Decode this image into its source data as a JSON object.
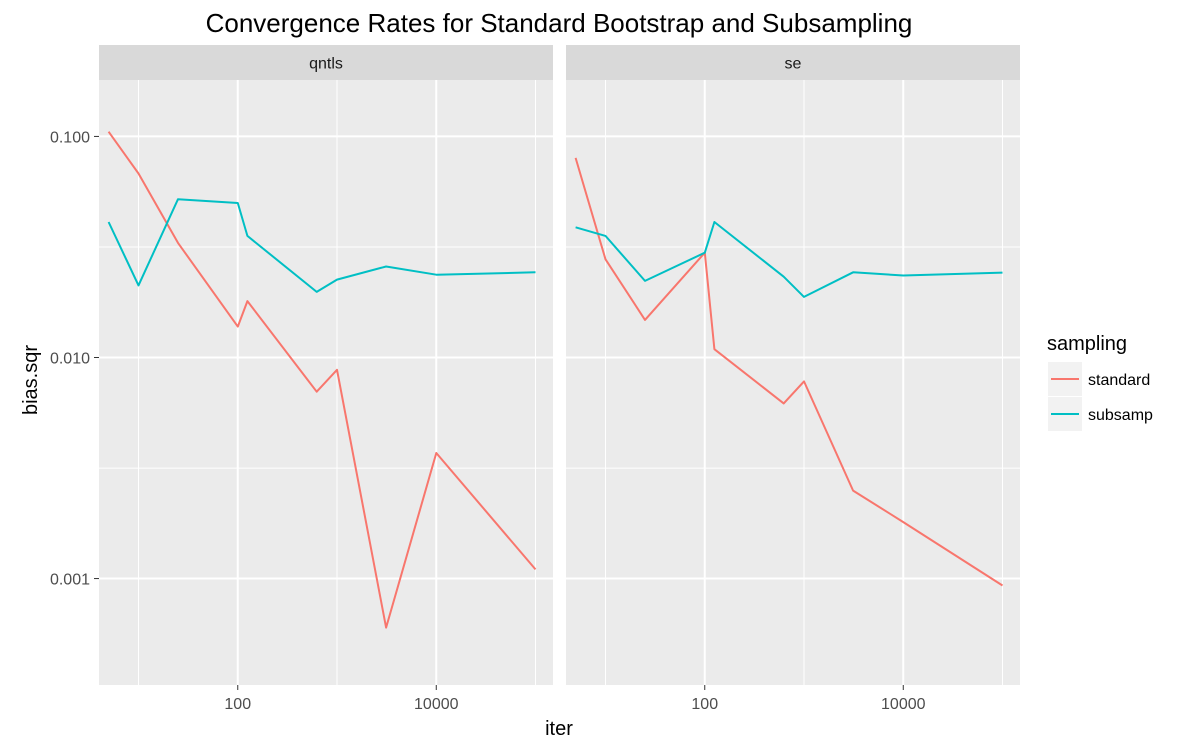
{
  "chart_data": {
    "type": "line",
    "title": "Convergence Rates for Standard Bootstrap and Subsampling",
    "xlabel": "iter",
    "ylabel": "bias.sqr",
    "x_scale": "log10",
    "y_scale": "log10",
    "xlim": [
      4,
      150000
    ],
    "ylim": [
      0.00033,
      0.18
    ],
    "x_ticks": [
      {
        "value": 100,
        "label": "100"
      },
      {
        "value": 10000,
        "label": "10000"
      }
    ],
    "y_ticks": [
      {
        "value": 0.001,
        "label": "0.001"
      },
      {
        "value": 0.01,
        "label": "0.010"
      },
      {
        "value": 0.1,
        "label": "0.100"
      }
    ],
    "grid": true,
    "legend": {
      "title": "sampling",
      "position": "right",
      "entries": [
        {
          "name": "standard",
          "color": "#F8766D"
        },
        {
          "name": "subsamp",
          "color": "#00BFC4"
        }
      ]
    },
    "panels": [
      {
        "label": "qntls",
        "series": [
          {
            "name": "standard",
            "color": "#F8766D",
            "x": [
              5,
              10,
              25,
              100,
              125,
              625,
              1000,
              3125,
              10000,
              100000
            ],
            "y": [
              0.105,
              0.068,
              0.033,
              0.0138,
              0.018,
              0.007,
              0.0088,
              0.0006,
              0.0037,
              0.0011
            ]
          },
          {
            "name": "subsamp",
            "color": "#00BFC4",
            "x": [
              5,
              10,
              25,
              100,
              125,
              625,
              1000,
              3125,
              10000,
              100000
            ],
            "y": [
              0.041,
              0.0212,
              0.052,
              0.05,
              0.0355,
              0.0198,
              0.0225,
              0.0258,
              0.0237,
              0.0243
            ]
          }
        ]
      },
      {
        "label": "se",
        "series": [
          {
            "name": "standard",
            "color": "#F8766D",
            "x": [
              5,
              10,
              25,
              100,
              125,
              625,
              1000,
              3125,
              10000,
              100000
            ],
            "y": [
              0.08,
              0.0278,
              0.0148,
              0.0298,
              0.0109,
              0.0062,
              0.0078,
              0.0025,
              0.0018,
              0.00093
            ]
          },
          {
            "name": "subsamp",
            "color": "#00BFC4",
            "x": [
              5,
              10,
              25,
              100,
              125,
              625,
              1000,
              3125,
              10000,
              100000
            ],
            "y": [
              0.0388,
              0.0355,
              0.0222,
              0.0298,
              0.041,
              0.0232,
              0.0188,
              0.0243,
              0.0235,
              0.0242
            ]
          }
        ]
      }
    ]
  }
}
